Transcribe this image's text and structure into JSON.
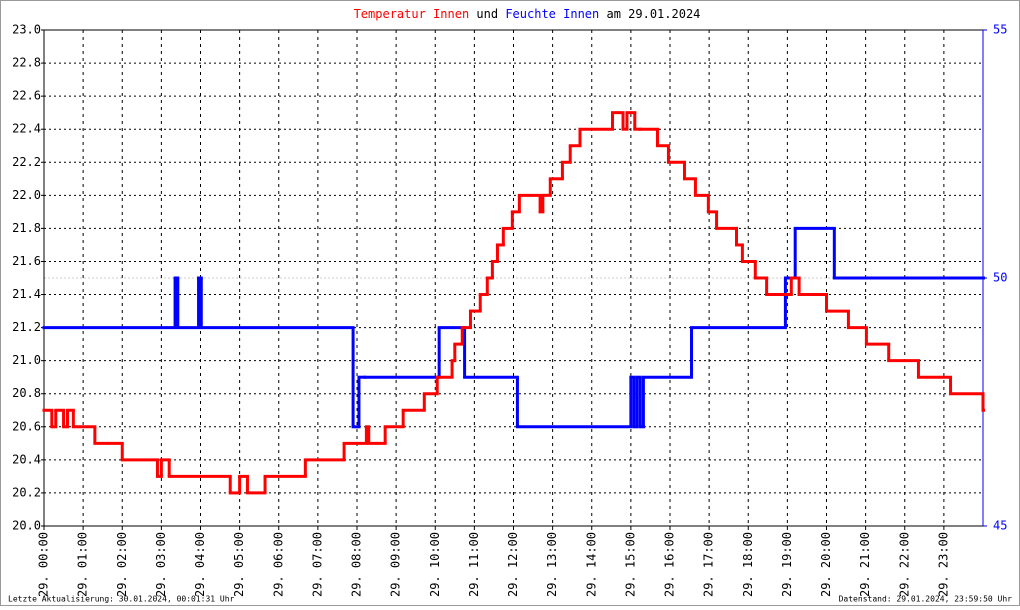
{
  "chart_data": {
    "type": "step-line",
    "title_joiner": "und",
    "title_date": "am 29.01.2024",
    "footer_left": "Letzte Aktualisierung: 30.01.2024, 00:01:31 Uhr",
    "footer_right": "Datenstand: 29.01.2024, 23:59:50 Uhr",
    "xlim": [
      0,
      24
    ],
    "xticks": [
      {
        "value": 0,
        "label": "29. 00:00"
      },
      {
        "value": 1,
        "label": "29. 01:00"
      },
      {
        "value": 2,
        "label": "29. 02:00"
      },
      {
        "value": 3,
        "label": "29. 03:00"
      },
      {
        "value": 4,
        "label": "29. 04:00"
      },
      {
        "value": 5,
        "label": "29. 05:00"
      },
      {
        "value": 6,
        "label": "29. 06:00"
      },
      {
        "value": 7,
        "label": "29. 07:00"
      },
      {
        "value": 8,
        "label": "29. 08:00"
      },
      {
        "value": 9,
        "label": "29. 09:00"
      },
      {
        "value": 10,
        "label": "29. 10:00"
      },
      {
        "value": 11,
        "label": "29. 11:00"
      },
      {
        "value": 12,
        "label": "29. 12:00"
      },
      {
        "value": 13,
        "label": "29. 13:00"
      },
      {
        "value": 14,
        "label": "29. 14:00"
      },
      {
        "value": 15,
        "label": "29. 15:00"
      },
      {
        "value": 16,
        "label": "29. 16:00"
      },
      {
        "value": 17,
        "label": "29. 17:00"
      },
      {
        "value": 18,
        "label": "29. 18:00"
      },
      {
        "value": 19,
        "label": "29. 19:00"
      },
      {
        "value": 20,
        "label": "29. 20:00"
      },
      {
        "value": 21,
        "label": "29. 21:00"
      },
      {
        "value": 22,
        "label": "29. 22:00"
      },
      {
        "value": 23,
        "label": "29. 23:00"
      }
    ],
    "ylim": [
      20,
      23
    ],
    "yticks": [
      {
        "value": 20,
        "label": "20.0"
      },
      20.2,
      20.4,
      20.6,
      20.8,
      {
        "value": 21,
        "label": "21.0"
      },
      21.2,
      21.4,
      21.6,
      21.8,
      {
        "value": 22,
        "label": "22.0"
      },
      22.2,
      22.4,
      22.6,
      22.8,
      {
        "value": 23,
        "label": "23.0"
      }
    ],
    "y2lim": [
      45,
      55
    ],
    "y2ticks": [
      45,
      50,
      55
    ],
    "grid": true,
    "series": [
      {
        "name": "Temperatur Innen",
        "color": "#ff0000",
        "x": [
          0,
          0.2,
          0.3,
          0.5,
          0.6,
          0.75,
          1.3,
          2.0,
          2.9,
          3.0,
          3.2,
          4.76,
          5.0,
          5.2,
          5.65,
          6.68,
          7.67,
          8.24,
          8.3,
          8.72,
          9.18,
          9.72,
          10.05,
          10.43,
          10.5,
          10.69,
          10.9,
          11.15,
          11.33,
          11.46,
          11.59,
          11.74,
          11.97,
          12.15,
          12.68,
          12.75,
          12.94,
          13.25,
          13.45,
          13.7,
          14.53,
          14.8,
          14.9,
          15.1,
          15.24,
          15.68,
          15.96,
          16.37,
          16.65,
          16.98,
          17.19,
          17.7,
          17.85,
          18.18,
          18.47,
          19.1,
          19.3,
          20.0,
          20.56,
          21.02,
          21.59,
          22.35,
          23.17,
          24
        ],
        "values": [
          20.7,
          20.6,
          20.7,
          20.6,
          20.7,
          20.6,
          20.5,
          20.4,
          20.3,
          20.4,
          20.3,
          20.2,
          20.3,
          20.2,
          20.3,
          20.4,
          20.5,
          20.6,
          20.5,
          20.6,
          20.7,
          20.8,
          20.9,
          21.0,
          21.1,
          21.2,
          21.3,
          21.4,
          21.5,
          21.6,
          21.7,
          21.8,
          21.9,
          22.0,
          21.9,
          22.0,
          22.1,
          22.2,
          22.3,
          22.4,
          22.5,
          22.4,
          22.5,
          22.4,
          22.4,
          22.3,
          22.2,
          22.1,
          22.0,
          21.9,
          21.8,
          21.7,
          21.6,
          21.5,
          21.4,
          21.5,
          21.4,
          21.3,
          21.2,
          21.1,
          21.0,
          20.9,
          20.8,
          20.7
        ]
      },
      {
        "name": "Feuchte Innen",
        "color": "#0000ff",
        "axis": "y2",
        "x": [
          0,
          3.35,
          3.42,
          3.95,
          4.02,
          7.9,
          8.05,
          8.2,
          10.1,
          10.75,
          12.1,
          15.0,
          15.08,
          15.16,
          15.24,
          15.32,
          16.55,
          18.95,
          19.2,
          20.2,
          24
        ],
        "values": [
          49,
          50,
          49,
          50,
          49,
          47,
          48,
          48,
          49,
          48,
          47,
          48,
          47,
          48,
          47,
          48,
          49,
          50,
          51,
          50,
          50
        ]
      }
    ]
  }
}
